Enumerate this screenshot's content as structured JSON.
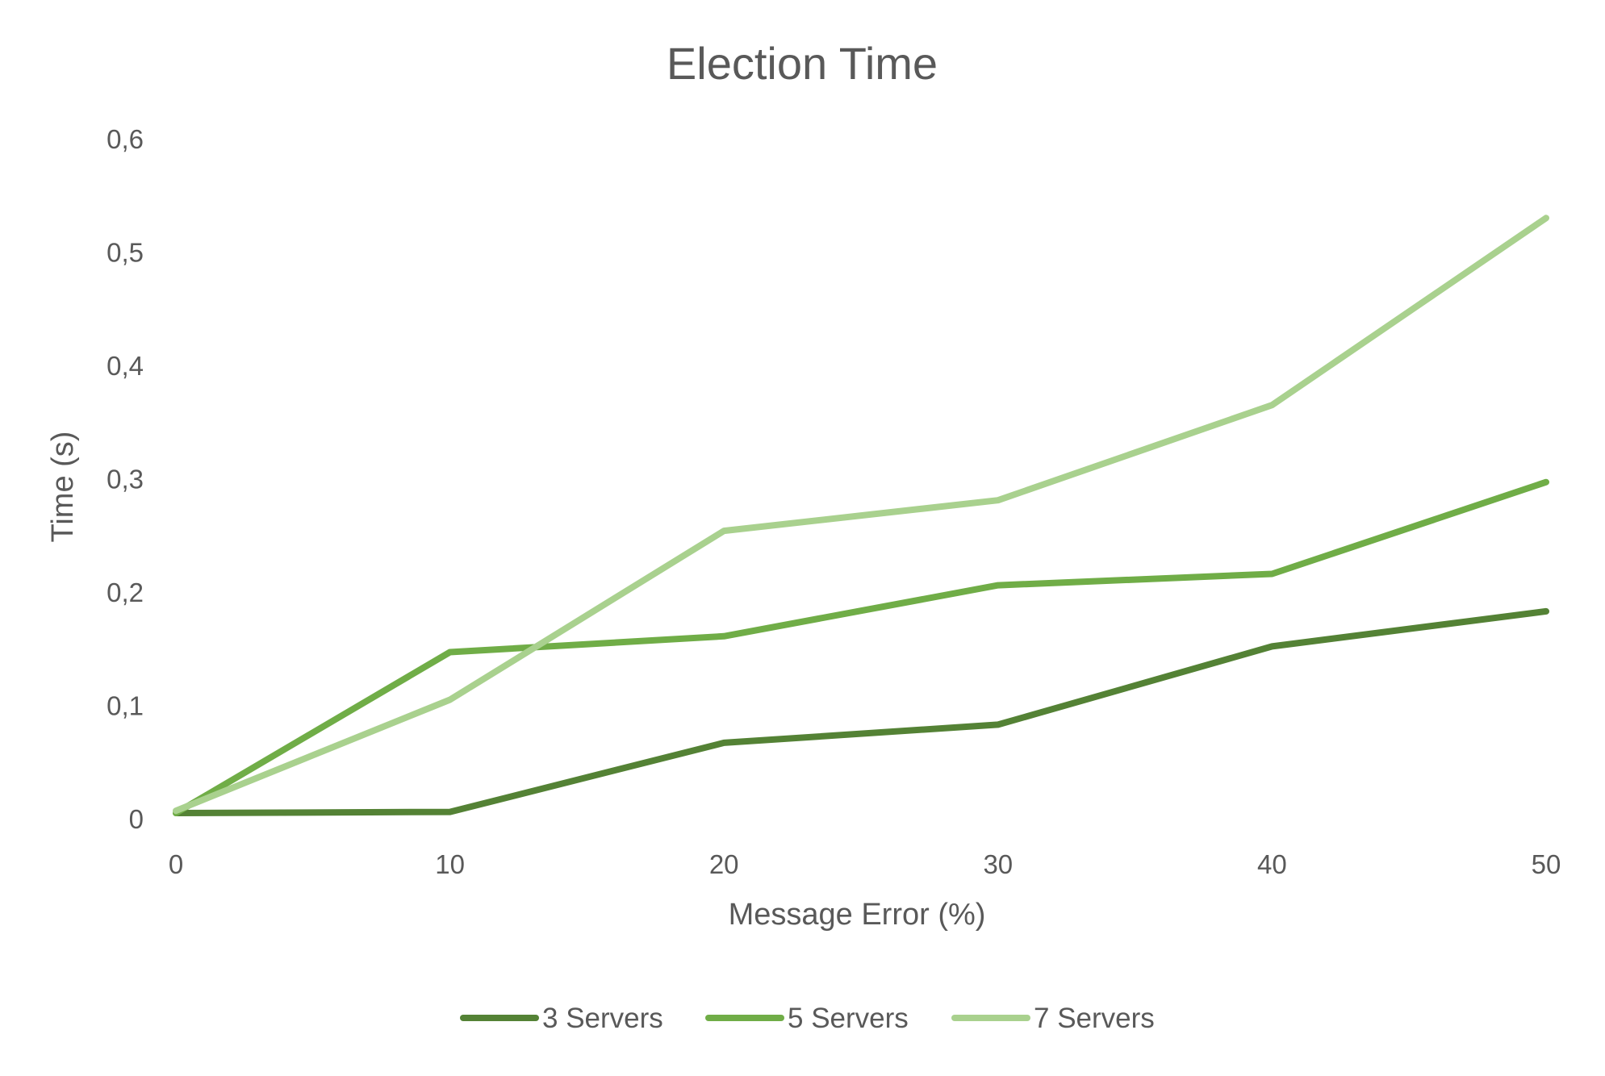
{
  "chart_data": {
    "type": "line",
    "title": "Election Time",
    "xlabel": "Message Error (%)",
    "ylabel": "Time (s)",
    "x": [
      0,
      10,
      20,
      30,
      40,
      50
    ],
    "x_tick_labels": [
      "0",
      "10",
      "20",
      "30",
      "40",
      "50"
    ],
    "xlim": [
      0,
      50
    ],
    "ylim": [
      0,
      0.6
    ],
    "y_ticks": [
      0,
      0.1,
      0.2,
      0.3,
      0.4,
      0.5,
      0.6
    ],
    "y_tick_labels": [
      "0",
      "0,1",
      "0,2",
      "0,3",
      "0,4",
      "0,5",
      "0,6"
    ],
    "grid": false,
    "legend_position": "bottom",
    "series": [
      {
        "name": "3 Servers",
        "color": "#548235",
        "values": [
          0.005,
          0.006,
          0.067,
          0.083,
          0.152,
          0.183
        ]
      },
      {
        "name": "5 Servers",
        "color": "#70AD47",
        "values": [
          0.005,
          0.147,
          0.161,
          0.206,
          0.216,
          0.297
        ]
      },
      {
        "name": "7 Servers",
        "color": "#A9D18E",
        "values": [
          0.007,
          0.105,
          0.254,
          0.281,
          0.365,
          0.53
        ]
      }
    ]
  }
}
